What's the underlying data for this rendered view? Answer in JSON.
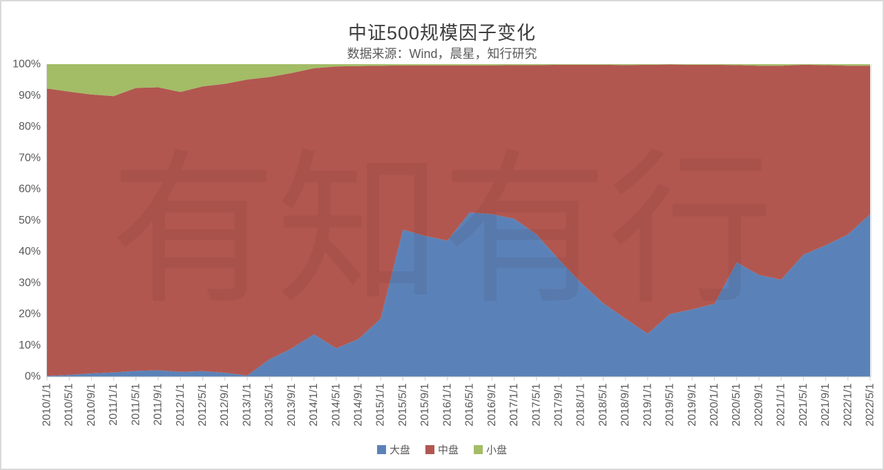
{
  "header": {
    "title": "中证500规模因子变化",
    "subtitle": "数据来源：Wind，晨星，知行研究"
  },
  "watermark": "有知有行",
  "chart_data": {
    "type": "area",
    "stacked": true,
    "value_unit": "percent",
    "title": "中证500规模因子变化",
    "subtitle": "数据来源：Wind，晨星，知行研究",
    "grid": false,
    "legend_position": "bottom",
    "ylim": [
      0,
      100
    ],
    "y_ticks": [
      "0%",
      "10%",
      "20%",
      "30%",
      "40%",
      "50%",
      "60%",
      "70%",
      "80%",
      "90%",
      "100%"
    ],
    "x_labels": [
      "2010/1/1",
      "2010/5/1",
      "2010/9/1",
      "2011/1/1",
      "2011/5/1",
      "2011/9/1",
      "2012/1/1",
      "2012/5/1",
      "2012/9/1",
      "2013/1/1",
      "2013/5/1",
      "2013/9/1",
      "2014/1/1",
      "2014/5/1",
      "2014/9/1",
      "2015/1/1",
      "2015/5/1",
      "2015/9/1",
      "2016/1/1",
      "2016/5/1",
      "2016/9/1",
      "2017/1/1",
      "2017/5/1",
      "2017/9/1",
      "2018/1/1",
      "2018/5/1",
      "2018/9/1",
      "2019/1/1",
      "2019/5/1",
      "2019/9/1",
      "2020/1/1",
      "2020/5/1",
      "2020/9/1",
      "2021/1/1",
      "2021/5/1",
      "2021/9/1",
      "2022/1/1",
      "2022/5/1"
    ],
    "series": [
      {
        "name": "大盘",
        "color": "#5B82B8",
        "values": [
          0.2,
          0.5,
          1.0,
          1.3,
          1.8,
          2.0,
          1.5,
          1.7,
          1.2,
          0.3,
          5.5,
          9.0,
          13.5,
          9.0,
          12.0,
          18.5,
          47.0,
          45.0,
          43.5,
          52.5,
          52.0,
          50.5,
          45.5,
          37.5,
          30.0,
          23.5,
          18.5,
          13.7,
          20.0,
          21.5,
          23.3,
          36.5,
          32.5,
          31.0,
          39.0,
          42.0,
          45.5,
          52.0
        ]
      },
      {
        "name": "中盘",
        "color": "#B15750",
        "values": [
          92.0,
          90.7,
          89.3,
          88.5,
          90.6,
          90.6,
          89.6,
          91.2,
          92.5,
          94.8,
          90.4,
          88.2,
          85.2,
          90.3,
          87.4,
          81.0,
          52.6,
          54.6,
          56.1,
          47.1,
          47.6,
          49.2,
          54.2,
          62.3,
          69.8,
          76.3,
          81.2,
          86.1,
          79.9,
          78.3,
          76.5,
          63.2,
          67.0,
          68.5,
          60.8,
          57.7,
          54.0,
          47.5
        ]
      },
      {
        "name": "小盘",
        "color": "#A3BC66",
        "values": [
          7.8,
          8.8,
          9.7,
          10.2,
          7.6,
          7.4,
          8.9,
          7.1,
          6.3,
          4.9,
          4.1,
          2.8,
          1.3,
          0.7,
          0.6,
          0.5,
          0.4,
          0.4,
          0.4,
          0.4,
          0.4,
          0.3,
          0.3,
          0.2,
          0.2,
          0.2,
          0.3,
          0.2,
          0.1,
          0.2,
          0.2,
          0.3,
          0.5,
          0.5,
          0.2,
          0.3,
          0.5,
          0.5
        ]
      }
    ]
  }
}
